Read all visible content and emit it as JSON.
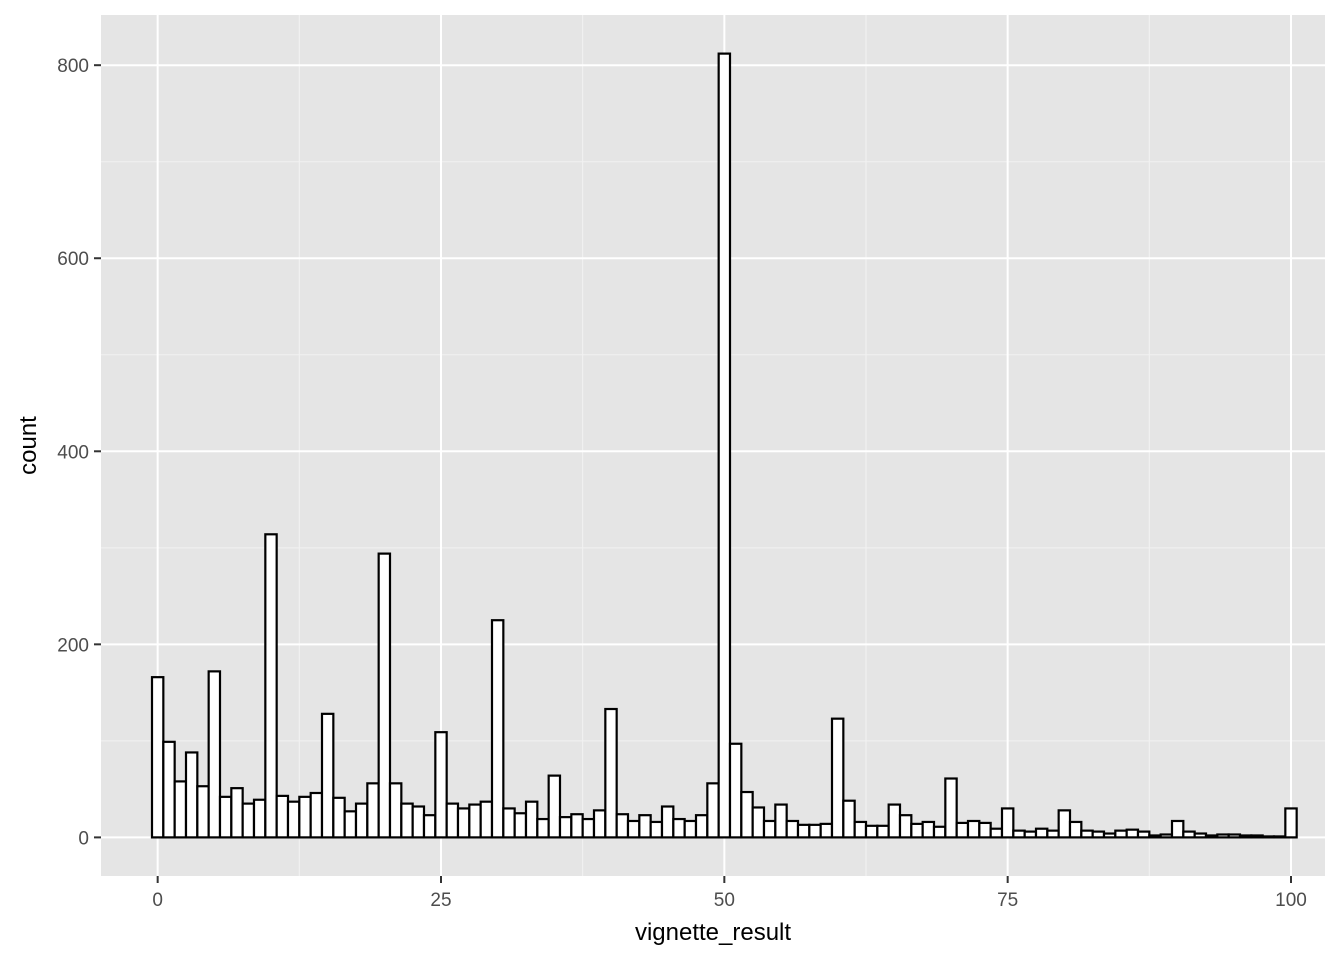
{
  "chart_data": {
    "type": "bar",
    "subtype": "histogram",
    "xlabel": "vignette_result",
    "ylabel": "count",
    "xlim": [
      -5,
      103
    ],
    "ylim": [
      -40,
      852
    ],
    "x_ticks": [
      0,
      25,
      50,
      75,
      100
    ],
    "x_tick_labels": [
      "0",
      "25",
      "50",
      "75",
      "100"
    ],
    "y_ticks": [
      0,
      200,
      400,
      600,
      800
    ],
    "y_tick_labels": [
      "0",
      "200",
      "400",
      "600",
      "800"
    ],
    "grid": true,
    "legend": "none",
    "bin_width": 1,
    "x": [
      0,
      1,
      2,
      3,
      4,
      5,
      6,
      7,
      8,
      9,
      10,
      11,
      12,
      13,
      14,
      15,
      16,
      17,
      18,
      19,
      20,
      21,
      22,
      23,
      24,
      25,
      26,
      27,
      28,
      29,
      30,
      31,
      32,
      33,
      34,
      35,
      36,
      37,
      38,
      39,
      40,
      41,
      42,
      43,
      44,
      45,
      46,
      47,
      48,
      49,
      50,
      51,
      52,
      53,
      54,
      55,
      56,
      57,
      58,
      59,
      60,
      61,
      62,
      63,
      64,
      65,
      66,
      67,
      68,
      69,
      70,
      71,
      72,
      73,
      74,
      75,
      76,
      77,
      78,
      79,
      80,
      81,
      82,
      83,
      84,
      85,
      86,
      87,
      88,
      89,
      90,
      91,
      92,
      93,
      94,
      95,
      96,
      97,
      98,
      99,
      100
    ],
    "values": [
      166,
      99,
      58,
      88,
      53,
      172,
      42,
      51,
      35,
      39,
      314,
      43,
      37,
      42,
      46,
      128,
      41,
      27,
      35,
      56,
      294,
      56,
      35,
      32,
      23,
      109,
      35,
      30,
      34,
      37,
      225,
      30,
      25,
      37,
      19,
      64,
      21,
      24,
      19,
      28,
      133,
      24,
      17,
      23,
      16,
      32,
      19,
      17,
      23,
      56,
      812,
      97,
      47,
      31,
      17,
      34,
      17,
      13,
      13,
      14,
      123,
      38,
      16,
      12,
      12,
      34,
      23,
      14,
      16,
      11,
      61,
      15,
      17,
      15,
      9,
      30,
      7,
      6,
      9,
      7,
      28,
      16,
      7,
      6,
      4,
      7,
      8,
      6,
      2,
      3,
      17,
      6,
      4,
      2,
      3,
      3,
      2,
      2,
      1,
      1,
      30
    ],
    "colors": {
      "panel_background": "#e5e5e5",
      "grid_major": "#ffffff",
      "grid_minor": "#f2f2f2",
      "bar_fill": "#ffffff",
      "bar_outline": "#000000",
      "tick_label": "#4d4d4d",
      "axis_title": "#000000"
    }
  }
}
